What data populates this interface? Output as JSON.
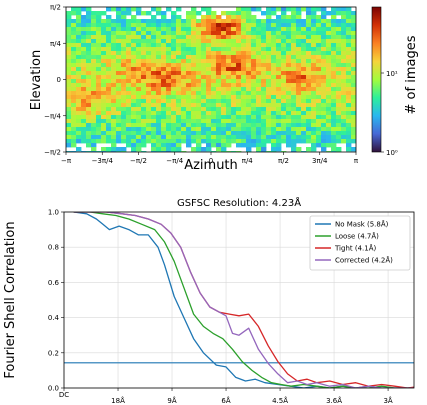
{
  "chart_data": [
    {
      "type": "heatmap",
      "title": "",
      "xlabel": "Azimuth",
      "ylabel": "Elevation",
      "xlim": [
        -3.1416,
        3.1416
      ],
      "ylim": [
        -1.5708,
        1.5708
      ],
      "xtick_labels": [
        "−π",
        "−3π/4",
        "−π/2",
        "−π/4",
        "0",
        "π/4",
        "π/2",
        "3π/4",
        "π"
      ],
      "ytick_labels": [
        "−π/2",
        "−π/4",
        "0",
        "π/4",
        "π/2"
      ],
      "colorbar": {
        "label": "# of images",
        "scale": "log",
        "tick_labels": [
          "10⁰",
          "10¹"
        ],
        "colors": [
          "#30123b",
          "#4668d6",
          "#2ab7ef",
          "#2ef09a",
          "#a4fc3c",
          "#f6d33a",
          "#fb8022",
          "#d23105",
          "#7a0403"
        ]
      },
      "hotspots": [
        {
          "azimuth": 0.2,
          "elevation": 1.15,
          "intensity": 1.0
        },
        {
          "azimuth": 0.5,
          "elevation": 0.3,
          "intensity": 0.55
        },
        {
          "azimuth": -0.9,
          "elevation": 0.0,
          "intensity": 0.5
        },
        {
          "azimuth": 2.0,
          "elevation": 0.05,
          "intensity": 0.45
        },
        {
          "azimuth": -2.6,
          "elevation": -0.45,
          "intensity": 0.4
        },
        {
          "azimuth": -1.6,
          "elevation": 0.2,
          "intensity": 0.3
        }
      ]
    },
    {
      "type": "line",
      "title": "GSFSC Resolution: 4.23Å",
      "xlabel": "",
      "ylabel": "Fourier Shell Correlation",
      "x_axis_unit": "fraction of Nyquist",
      "xlim": [
        0,
        1
      ],
      "ylim": [
        0,
        1.0
      ],
      "grid": true,
      "legend_position": "top-right",
      "xticks": [
        0,
        0.1667,
        0.3333,
        0.5,
        0.6667,
        0.8333,
        1.0
      ],
      "xtick_labels": [
        "DC",
        "18Å",
        "9Å",
        "6Å",
        "4.5Å",
        "3.6Å",
        "3Å"
      ],
      "yticks": [
        0,
        0.2,
        0.4,
        0.6,
        0.8,
        1.0
      ],
      "ytick_labels": [
        "0.0",
        "0.2",
        "0.4",
        "0.6",
        "0.8",
        "1.0"
      ],
      "threshold": 0.143,
      "series": [
        {
          "name": "No Mask (5.8Å)",
          "color": "#1f77b4",
          "x": [
            0.03,
            0.07,
            0.1,
            0.12,
            0.14,
            0.17,
            0.2,
            0.23,
            0.26,
            0.29,
            0.31,
            0.34,
            0.37,
            0.4,
            0.43,
            0.47,
            0.5,
            0.53,
            0.56,
            0.59,
            0.62,
            0.66,
            0.7,
            0.74,
            0.78,
            0.82,
            0.86,
            0.9,
            0.94,
            0.98,
            1.02,
            1.06,
            1.1
          ],
          "y": [
            1.0,
            0.99,
            0.96,
            0.93,
            0.9,
            0.92,
            0.9,
            0.87,
            0.87,
            0.8,
            0.7,
            0.52,
            0.4,
            0.28,
            0.2,
            0.13,
            0.12,
            0.06,
            0.04,
            0.05,
            0.03,
            0.02,
            0.01,
            0.0,
            0.01,
            0.0,
            0.01,
            0.0,
            0.01,
            0.0,
            0.0,
            0.0,
            0.0
          ]
        },
        {
          "name": "Loose (4.7Å)",
          "color": "#2ca02c",
          "x": [
            0.03,
            0.08,
            0.12,
            0.16,
            0.2,
            0.24,
            0.28,
            0.31,
            0.34,
            0.37,
            0.4,
            0.43,
            0.46,
            0.49,
            0.52,
            0.55,
            0.58,
            0.61,
            0.64,
            0.67,
            0.7,
            0.74,
            0.78,
            0.82,
            0.86,
            0.9,
            0.94,
            0.98,
            1.02,
            1.06,
            1.1
          ],
          "y": [
            1.0,
            1.0,
            0.99,
            0.98,
            0.96,
            0.93,
            0.9,
            0.83,
            0.72,
            0.57,
            0.42,
            0.35,
            0.31,
            0.28,
            0.22,
            0.15,
            0.1,
            0.06,
            0.03,
            0.02,
            0.01,
            0.02,
            0.01,
            0.0,
            0.01,
            0.0,
            0.0,
            0.01,
            0.0,
            0.0,
            0.0
          ]
        },
        {
          "name": "Tight (4.1Å)",
          "color": "#d62728",
          "x": [
            0.03,
            0.08,
            0.13,
            0.18,
            0.22,
            0.26,
            0.3,
            0.33,
            0.36,
            0.39,
            0.42,
            0.45,
            0.48,
            0.51,
            0.54,
            0.57,
            0.6,
            0.63,
            0.66,
            0.69,
            0.72,
            0.75,
            0.78,
            0.82,
            0.86,
            0.9,
            0.94,
            0.98,
            1.02,
            1.06,
            1.1
          ],
          "y": [
            1.0,
            1.0,
            1.0,
            0.99,
            0.98,
            0.96,
            0.93,
            0.88,
            0.8,
            0.66,
            0.54,
            0.46,
            0.43,
            0.42,
            0.41,
            0.42,
            0.35,
            0.24,
            0.15,
            0.08,
            0.04,
            0.05,
            0.03,
            0.04,
            0.02,
            0.03,
            0.01,
            0.02,
            0.01,
            0.0,
            0.01
          ]
        },
        {
          "name": "Corrected (4.2Å)",
          "color": "#9467bd",
          "x": [
            0.03,
            0.08,
            0.13,
            0.18,
            0.22,
            0.26,
            0.3,
            0.33,
            0.36,
            0.39,
            0.42,
            0.45,
            0.48,
            0.5,
            0.52,
            0.54,
            0.57,
            0.6,
            0.63,
            0.66,
            0.69,
            0.72,
            0.75,
            0.78,
            0.82,
            0.86,
            0.9,
            0.94,
            0.98,
            1.02,
            1.06,
            1.1
          ],
          "y": [
            1.0,
            1.0,
            1.0,
            0.99,
            0.98,
            0.96,
            0.93,
            0.88,
            0.8,
            0.66,
            0.54,
            0.46,
            0.43,
            0.41,
            0.31,
            0.3,
            0.34,
            0.22,
            0.14,
            0.08,
            0.03,
            0.04,
            0.02,
            0.03,
            0.01,
            0.02,
            0.0,
            0.01,
            0.0,
            0.0,
            0.0,
            0.0
          ]
        }
      ]
    }
  ]
}
